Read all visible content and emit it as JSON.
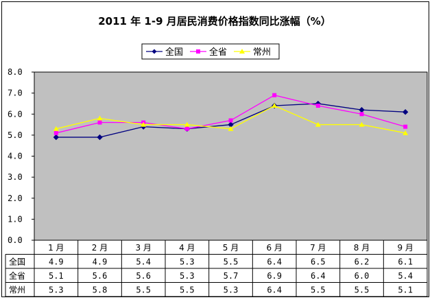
{
  "chart_data": {
    "type": "line",
    "title": "2011 年 1-9 月居民消费价格指数同比涨幅（%）",
    "categories": [
      "1 月",
      "2 月",
      "3 月",
      "4 月",
      "5 月",
      "6 月",
      "7 月",
      "8 月",
      "9 月"
    ],
    "y_ticks": [
      "8.0",
      "7.0",
      "6.0",
      "5.0",
      "4.0",
      "3.0",
      "2.0",
      "1.0",
      "0.0"
    ],
    "ylim": [
      0,
      8
    ],
    "grid": false,
    "plot_background": "#c0c0c0",
    "legend_position": "top-center",
    "series": [
      {
        "name": "全国",
        "color": "#000080",
        "marker": "diamond",
        "values": [
          4.9,
          4.9,
          5.4,
          5.3,
          5.5,
          6.4,
          6.5,
          6.2,
          6.1
        ],
        "labels": [
          "4.9",
          "4.9",
          "5.4",
          "5.3",
          "5.5",
          "6.4",
          "6.5",
          "6.2",
          "6.1"
        ]
      },
      {
        "name": "全省",
        "color": "#ff00ff",
        "marker": "square",
        "values": [
          5.1,
          5.6,
          5.6,
          5.3,
          5.7,
          6.9,
          6.4,
          6.0,
          5.4
        ],
        "labels": [
          "5.1",
          "5.6",
          "5.6",
          "5.3",
          "5.7",
          "6.9",
          "6.4",
          "6.0",
          "5.4"
        ]
      },
      {
        "name": "常州",
        "color": "#ffff00",
        "marker": "triangle",
        "values": [
          5.3,
          5.8,
          5.5,
          5.5,
          5.3,
          6.4,
          5.5,
          5.5,
          5.1
        ],
        "labels": [
          "5.3",
          "5.8",
          "5.5",
          "5.5",
          "5.3",
          "6.4",
          "5.5",
          "5.5",
          "5.1"
        ]
      }
    ]
  }
}
